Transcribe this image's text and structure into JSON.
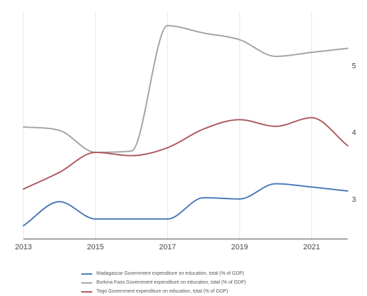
{
  "chart_data": {
    "type": "line",
    "title": "",
    "xlabel": "",
    "ylabel": "",
    "x": [
      2013,
      2014,
      2015,
      2016,
      2017,
      2018,
      2019,
      2020,
      2021,
      2022
    ],
    "xticks": [
      "2013",
      "2015",
      "2017",
      "2019",
      "2021"
    ],
    "yticks": [
      "3",
      "4",
      "5"
    ],
    "xlim": [
      2013,
      2022
    ],
    "ylim": [
      2.4,
      5.8
    ],
    "y_axis_side": "right",
    "grid": "vertical",
    "legend_position": "bottom",
    "series": [
      {
        "name": "Madagascar Government expenditure on education, total (% of GDP)",
        "color": "#4a7ab8",
        "values": [
          2.6,
          2.96,
          2.7,
          2.7,
          2.7,
          3.02,
          3.0,
          3.23,
          3.18,
          3.12
        ]
      },
      {
        "name": "Burkina Faso Government expenditure on education, total (% of GDP)",
        "color": "#a3a3a3",
        "values": [
          4.08,
          4.03,
          3.7,
          3.72,
          5.6,
          5.49,
          5.39,
          5.14,
          5.2,
          5.26
        ]
      },
      {
        "name": "Togo Government expenditure on education, total (% of GDP)",
        "color": "#b05a5f",
        "values": [
          3.15,
          3.4,
          3.7,
          3.65,
          3.77,
          4.05,
          4.19,
          4.09,
          4.22,
          3.8
        ]
      }
    ]
  }
}
